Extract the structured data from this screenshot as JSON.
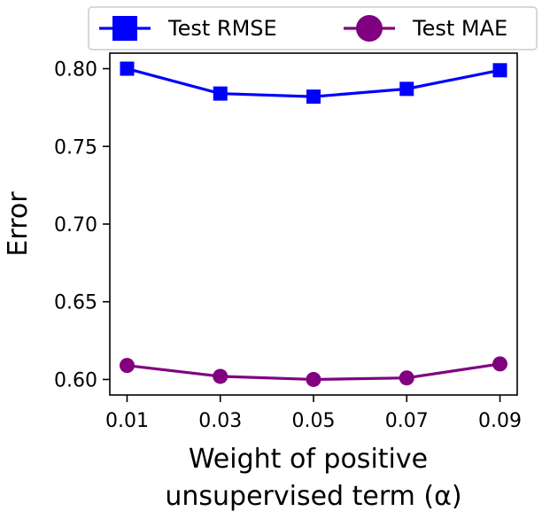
{
  "chart_data": {
    "type": "line",
    "title": "",
    "xlabel": [
      "Weight of positive",
      "unsupervised term (α)"
    ],
    "ylabel": "Error",
    "categories": [
      "0.01",
      "0.03",
      "0.05",
      "0.07",
      "0.09"
    ],
    "x": [
      0.01,
      0.03,
      0.05,
      0.07,
      0.09
    ],
    "xlim": [
      0.0063,
      0.0937
    ],
    "ylim": [
      0.59,
      0.81
    ],
    "yticks": [
      0.6,
      0.65,
      0.7,
      0.75,
      0.8
    ],
    "ytick_labels": [
      "0.60",
      "0.65",
      "0.70",
      "0.75",
      "0.80"
    ],
    "legend_position": "top-center",
    "series": [
      {
        "name": "Test RMSE",
        "color": "#0000ff",
        "marker": "square",
        "values": [
          0.8,
          0.784,
          0.782,
          0.787,
          0.799
        ]
      },
      {
        "name": "Test MAE",
        "color": "#800080",
        "marker": "circle",
        "values": [
          0.609,
          0.602,
          0.6,
          0.601,
          0.61
        ]
      }
    ]
  }
}
